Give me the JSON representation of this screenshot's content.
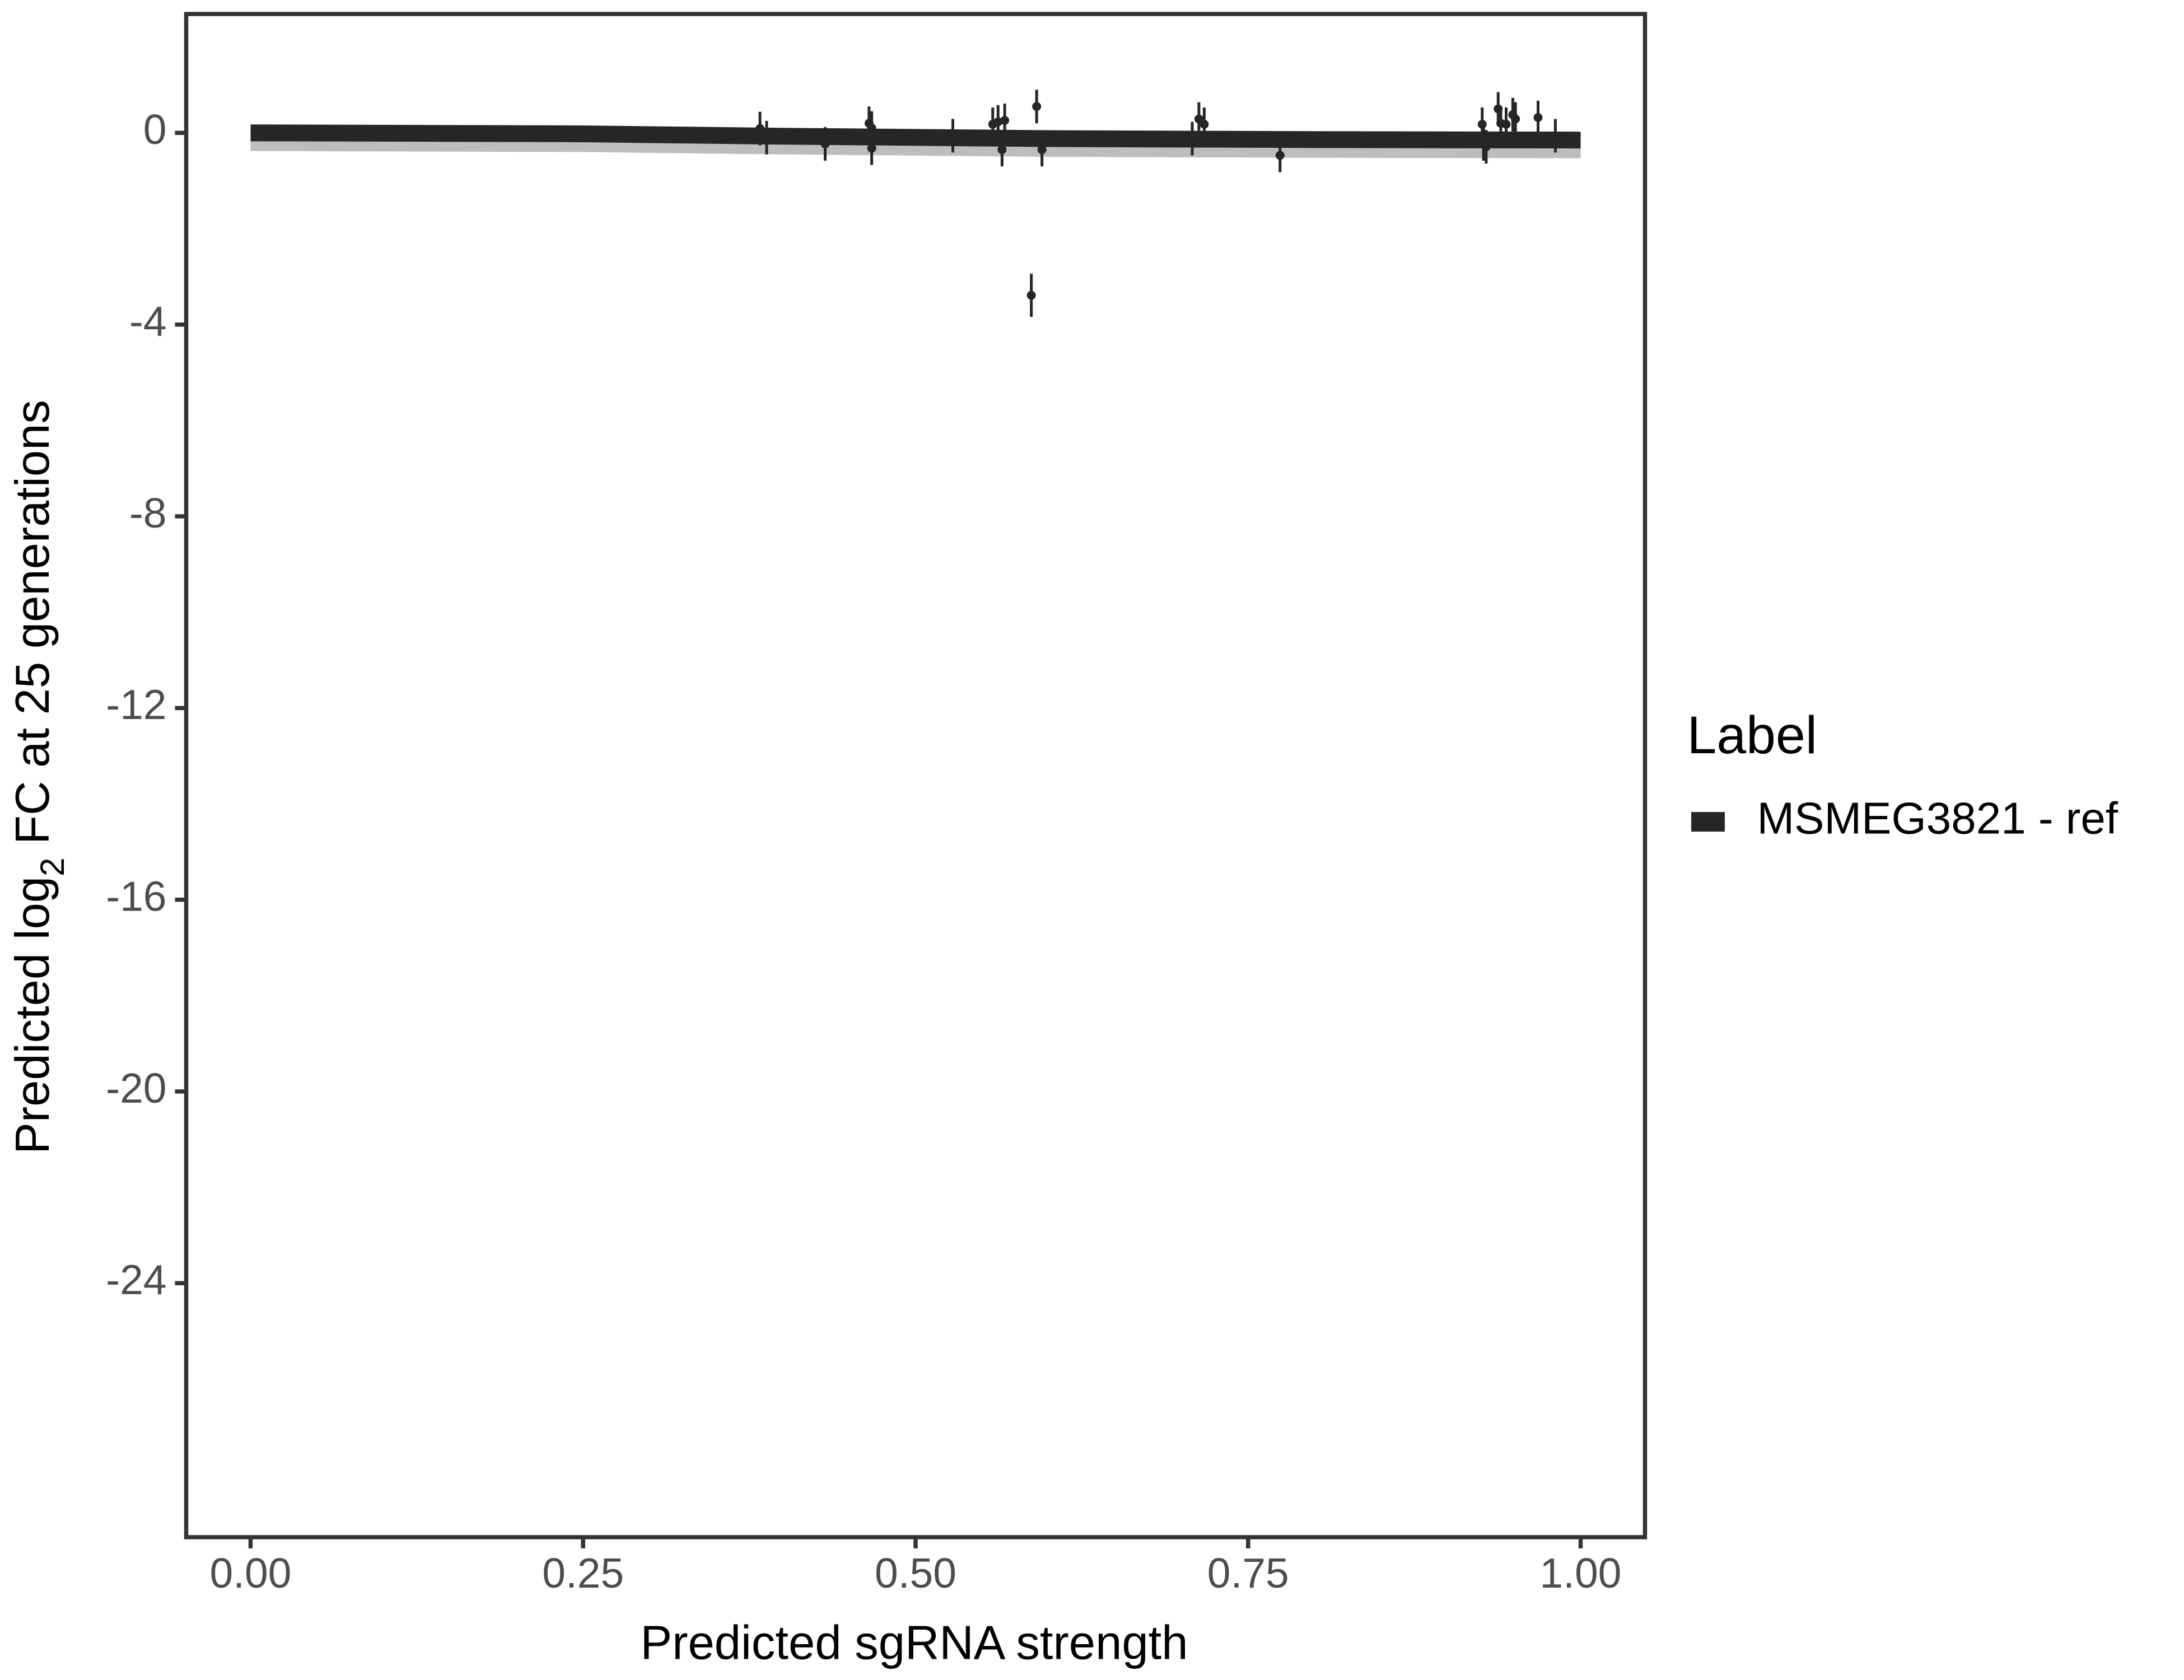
{
  "chart_data": {
    "type": "scatter",
    "xlabel": "Predicted sgRNA strength",
    "ylabel": {
      "before": "Predicted  log",
      "sub": "2",
      "after": " FC at 25 generations"
    },
    "legend_title": "Label",
    "legend": "right",
    "xlim": [
      -0.0484,
      1.0484
    ],
    "ylim": [
      -29.3,
      2.48
    ],
    "xticks": [
      {
        "value": 0,
        "label": "0.00"
      },
      {
        "value": 0.25,
        "label": "0.25"
      },
      {
        "value": 0.5,
        "label": "0.50"
      },
      {
        "value": 0.75,
        "label": "0.75"
      },
      {
        "value": 1,
        "label": "1.00"
      }
    ],
    "yticks": [
      0,
      -4,
      -8,
      -12,
      -16,
      -20,
      -24
    ],
    "series": [
      {
        "name": "MSMEG3821 - ref",
        "color": "#262626",
        "x": [
          0.383,
          0.388,
          0.432,
          0.465,
          0.467,
          0.467,
          0.528,
          0.558,
          0.562,
          0.565,
          0.567,
          0.587,
          0.591,
          0.595,
          0.708,
          0.713,
          0.717,
          0.774,
          0.926,
          0.927,
          0.929,
          0.938,
          0.94,
          0.944,
          0.949,
          0.951,
          0.968,
          0.981
        ],
        "values": [
          0.09,
          -0.1,
          -0.23,
          0.2,
          0.1,
          -0.32,
          -0.06,
          0.18,
          0.23,
          -0.35,
          0.26,
          -3.39,
          0.55,
          -0.35,
          -0.12,
          0.29,
          0.18,
          -0.47,
          0.18,
          -0.23,
          -0.29,
          0.5,
          0.2,
          0.18,
          0.38,
          0.29,
          0.32,
          -0.06
        ],
        "errors": [
          0.35,
          0.35,
          0.35,
          0.35,
          0.35,
          0.35,
          0.35,
          0.35,
          0.35,
          0.35,
          0.35,
          0.45,
          0.35,
          0.35,
          0.35,
          0.35,
          0.35,
          0.35,
          0.35,
          0.35,
          0.35,
          0.35,
          0.35,
          0.35,
          0.35,
          0.35,
          0.35,
          0.35
        ],
        "fit": {
          "x": [
            0,
            0.25,
            0.4,
            0.6,
            0.8,
            1
          ],
          "values": [
            0,
            -0.02,
            -0.07,
            -0.12,
            -0.14,
            -0.15
          ]
        }
      }
    ]
  }
}
